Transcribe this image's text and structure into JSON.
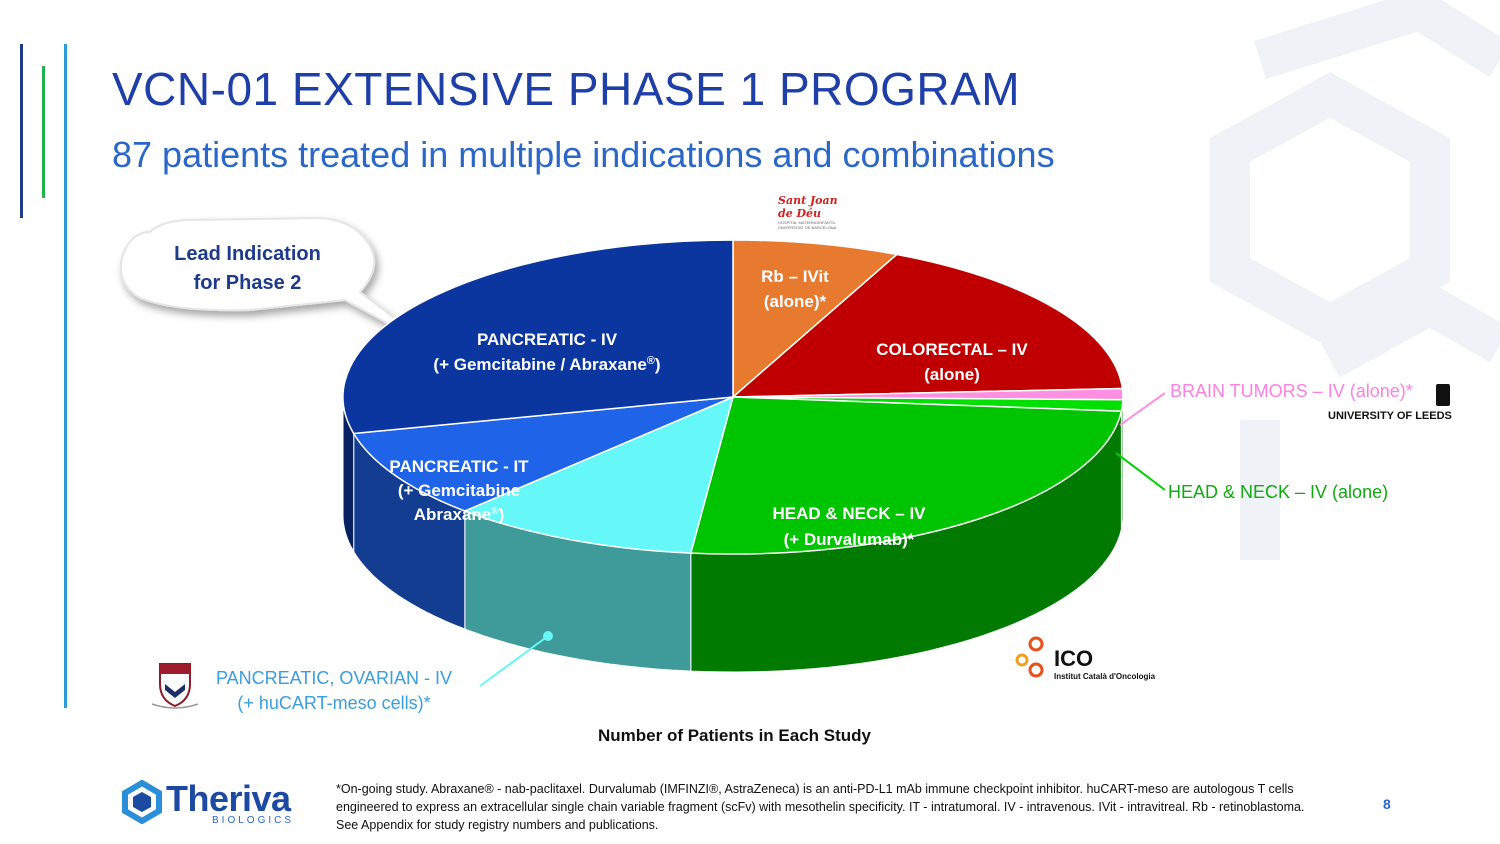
{
  "header": {
    "title": "VCN-01 EXTENSIVE PHASE 1 PROGRAM",
    "subtitle": "87 patients treated in multiple indications and combinations"
  },
  "callout": {
    "text_line1": "Lead Indication",
    "text_line2": "for Phase 2"
  },
  "chart_data": {
    "type": "pie",
    "title": "",
    "caption": "Number of Patients in Each Study",
    "slices": [
      {
        "name": "Rb – IVit (alone)*",
        "value": 6,
        "color": "#e87a30"
      },
      {
        "name": "COLORECTAL – IV (alone)",
        "value": 15,
        "color": "#c00000"
      },
      {
        "name": "BRAIN TUMORS – IV (alone)*",
        "value": 1,
        "color": "#ff8fe0"
      },
      {
        "name": "HEAD & NECK – IV (alone)",
        "value": 1,
        "color": "#00e000"
      },
      {
        "name": "HEAD & NECK – IV (+ Durvalumab)*",
        "value": 22,
        "color": "#00c400"
      },
      {
        "name": "PANCREATIC, OVARIAN - IV (+ huCART-meso cells)*",
        "value": 9,
        "color": "#66f8f8"
      },
      {
        "name": "PANCREATIC - IT (+ Gemcitabine Abraxane®)",
        "value": 8,
        "color": "#1f63e8"
      },
      {
        "name": "PANCREATIC - IV (+ Gemcitabine / Abraxane®)",
        "value": 25,
        "color": "#0b36a0"
      }
    ],
    "labels": {
      "rb_1": "Rb – IVit",
      "rb_2": "(alone)*",
      "crc_1": "COLORECTAL – IV",
      "crc_2": "(alone)",
      "hn_1": "HEAD & NECK – IV",
      "hn_2": "(+ Durvalumab)*",
      "piv_1": "PANCREATIC - IV",
      "piv_2": "(+ Gemcitabine / Abraxane",
      "piv_2_sup": "®",
      "piv_2_end": ")",
      "pit_1": "PANCREATIC -  IT",
      "pit_2": "(+ Gemcitabine",
      "pit_3": "Abraxane",
      "pit_3_sup": "®",
      "pit_3_end": ")",
      "brain": "BRAIN TUMORS – IV (alone)*",
      "hn_alone": "HEAD & NECK – IV (alone)",
      "panc_ov_1": "PANCREATIC, OVARIAN -  IV",
      "panc_ov_2": "(+ huCART-meso cells)*"
    }
  },
  "logos": {
    "sjd_1": "Sant Joan",
    "sjd_2": "de Déu",
    "sjd_3": "HOSPITAL MATERNOINFANTIL",
    "sjd_4": "UNIVERSITAT DE BARCELONA",
    "leeds": "UNIVERSITY OF LEEDS",
    "ico": "ICO",
    "ico_sub": "Institut Català d'Oncologia"
  },
  "footer": {
    "brand": "Theriva",
    "brand_sub": "BIOLOGICS",
    "footnote": "*On-going study. Abraxane® - nab-paclitaxel. Durvalumab (IMFINZI®, AstraZeneca) is an anti-PD-L1 mAb immune checkpoint inhibitor. huCART-meso are autologous T cells engineered to express an extracellular single chain variable fragment (scFv) with mesothelin specificity. IT - intratumoral. IV - intravenous. IVit - intravitreal. Rb - retinoblastoma. See Appendix for study registry numbers and publications.",
    "page": "8"
  },
  "colors": {
    "title": "#1e3fa8",
    "subtitle": "#2a67c8",
    "accent_green": "#22b14c",
    "accent_blue": "#2a9ad8"
  }
}
